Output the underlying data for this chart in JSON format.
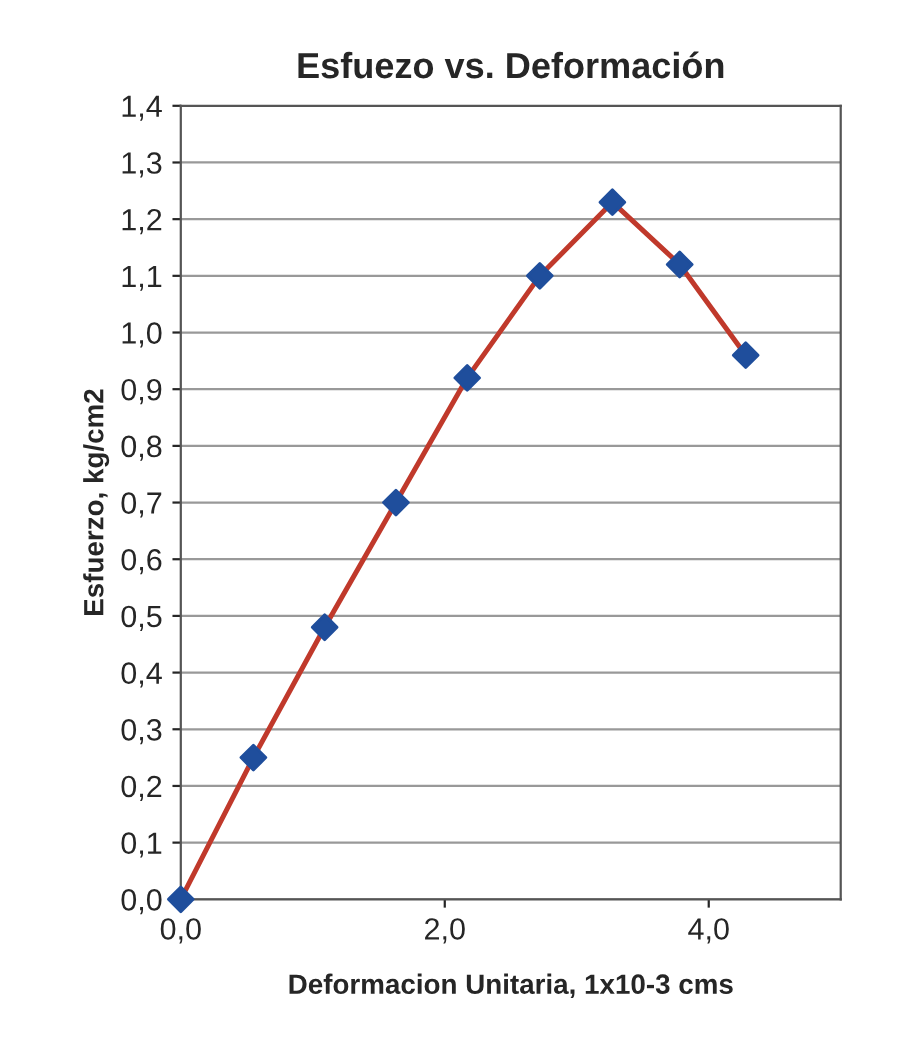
{
  "chart_data": {
    "type": "line",
    "title": "Esfuezo vs. Deformación",
    "xlabel": "Deformacion Unitaria, 1x10-3 cms",
    "ylabel": "Esfuerzo, kg/cm2",
    "x": [
      0,
      0.55,
      1.09,
      1.63,
      2.17,
      2.72,
      3.27,
      3.78,
      4.28
    ],
    "series": [
      {
        "color": "#c0392b",
        "colors": [
          "#1f4e9c",
          "#1f4e9c",
          "#1f4e9c",
          "#1f4e9c",
          "#1f4e9c",
          "#1f4e9c",
          "#1f4e9c",
          "#1f4e9c",
          "#1f4e9c"
        ],
        "values": [
          0,
          0.25,
          0.48,
          0.7,
          0.92,
          1.1,
          1.23,
          1.12,
          0.96
        ]
      }
    ],
    "xlim": [
      0,
      5
    ],
    "xticks": [
      {
        "value": 0,
        "label": "0,0"
      },
      {
        "value": 2,
        "label": "2,0"
      },
      {
        "value": 4,
        "label": "4,0"
      }
    ],
    "ylim": [
      0,
      1.4
    ],
    "yticks": [
      {
        "value": 0,
        "label": "0,0"
      },
      {
        "value": 0.1,
        "label": "0,1"
      },
      {
        "value": 0.2,
        "label": "0,2"
      },
      {
        "value": 0.3,
        "label": "0,3"
      },
      {
        "value": 0.4,
        "label": "0,4"
      },
      {
        "value": 0.5,
        "label": "0,5"
      },
      {
        "value": 0.6,
        "label": "0,6"
      },
      {
        "value": 0.7,
        "label": "0,7"
      },
      {
        "value": 0.8,
        "label": "0,8"
      },
      {
        "value": 0.9,
        "label": "0,9"
      },
      {
        "value": 1.0,
        "label": "1,0"
      },
      {
        "value": 1.1,
        "label": "1,1"
      },
      {
        "value": 1.2,
        "label": "1,2"
      },
      {
        "value": 1.3,
        "label": "1,3"
      },
      {
        "value": 1.4,
        "label": "1,4"
      }
    ],
    "grid": "y",
    "marker": "diamond",
    "line_style": "solid"
  }
}
